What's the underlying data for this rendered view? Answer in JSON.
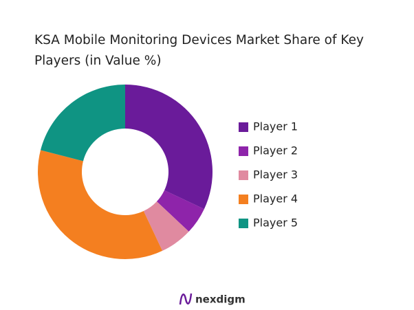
{
  "chart_data": {
    "type": "donut",
    "title": "KSA Mobile Monitoring Devices Market Share of Key Players (in Value %)",
    "categories": [
      "Player 1",
      "Player 2",
      "Player 3",
      "Player 4",
      "Player 5"
    ],
    "values": [
      32,
      5,
      6,
      36,
      21
    ],
    "colors": [
      "#6a1b9a",
      "#8e24aa",
      "#e08aa0",
      "#f47f20",
      "#0f9483"
    ],
    "legend": "right"
  },
  "footer": {
    "brand": "nexdigm"
  }
}
